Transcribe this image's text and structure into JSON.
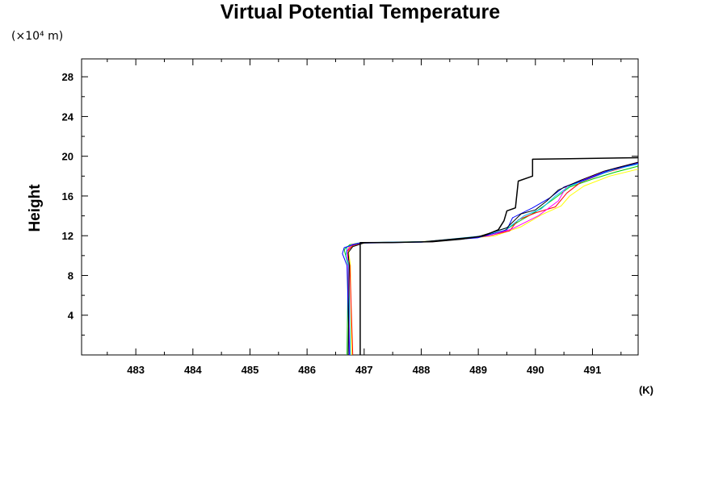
{
  "chart_data": {
    "type": "line",
    "title": "Virtual Potential Temperature",
    "ylabel": "Height",
    "y_unit": "(×10⁴ m)",
    "x_unit": "(K)",
    "xlim": [
      482.05,
      491.8
    ],
    "ylim": [
      0,
      29.8
    ],
    "x_ticks": [
      483,
      484,
      485,
      486,
      487,
      488,
      489,
      490,
      491
    ],
    "x_tick_labels": [
      "483",
      "484",
      "485",
      "486",
      "487",
      "488",
      "489",
      "490",
      "491"
    ],
    "y_ticks": [
      4,
      8,
      12,
      16,
      20,
      24,
      28
    ],
    "y_tick_labels": [
      "4",
      "8",
      "12",
      "16",
      "20",
      "24",
      "28"
    ],
    "grid": false,
    "series": [
      {
        "color": "#000000",
        "width": 1.5,
        "points": [
          [
            486.93,
            0
          ],
          [
            486.93,
            11.3
          ],
          [
            487.5,
            11.32
          ],
          [
            488.2,
            11.4
          ],
          [
            488.7,
            11.65
          ],
          [
            489.1,
            12.0
          ],
          [
            489.35,
            12.6
          ],
          [
            489.45,
            13.5
          ],
          [
            489.5,
            14.5
          ],
          [
            489.65,
            14.8
          ],
          [
            489.7,
            17.5
          ],
          [
            489.95,
            18.0
          ],
          [
            489.95,
            19.7
          ],
          [
            490.6,
            19.75
          ],
          [
            491.8,
            19.85
          ]
        ]
      },
      {
        "color": "#000000",
        "width": 1.0,
        "points": [
          [
            486.72,
            0
          ],
          [
            486.74,
            9.0
          ],
          [
            486.72,
            10.3
          ],
          [
            486.8,
            10.9
          ],
          [
            487.0,
            11.28
          ],
          [
            488.0,
            11.38
          ],
          [
            489.0,
            11.9
          ],
          [
            489.5,
            12.8
          ],
          [
            489.75,
            14.2
          ],
          [
            490.0,
            14.6
          ],
          [
            490.2,
            15.5
          ],
          [
            490.4,
            16.6
          ],
          [
            490.8,
            17.6
          ],
          [
            491.2,
            18.5
          ],
          [
            491.8,
            19.4
          ]
        ]
      },
      {
        "color": "#0000ff",
        "width": 1.0,
        "points": [
          [
            486.74,
            0
          ],
          [
            486.7,
            9.0
          ],
          [
            486.62,
            10.2
          ],
          [
            486.65,
            10.8
          ],
          [
            486.9,
            11.25
          ],
          [
            488.0,
            11.35
          ],
          [
            489.0,
            11.8
          ],
          [
            489.5,
            12.6
          ],
          [
            489.6,
            13.8
          ],
          [
            489.95,
            14.8
          ],
          [
            490.25,
            15.8
          ],
          [
            490.5,
            16.9
          ],
          [
            490.9,
            17.7
          ],
          [
            491.3,
            18.6
          ],
          [
            491.8,
            19.3
          ]
        ]
      },
      {
        "color": "#00bfff",
        "width": 1.0,
        "points": [
          [
            486.76,
            0
          ],
          [
            486.73,
            9.0
          ],
          [
            486.68,
            10.0
          ],
          [
            486.7,
            10.9
          ],
          [
            486.95,
            11.3
          ],
          [
            488.1,
            11.42
          ],
          [
            489.1,
            12.0
          ],
          [
            489.55,
            12.9
          ],
          [
            489.8,
            14.0
          ],
          [
            490.1,
            14.7
          ],
          [
            490.35,
            16.0
          ],
          [
            490.6,
            17.0
          ],
          [
            491.0,
            17.9
          ],
          [
            491.4,
            18.7
          ],
          [
            491.8,
            19.2
          ]
        ]
      },
      {
        "color": "#ff00ff",
        "width": 1.0,
        "points": [
          [
            486.75,
            0
          ],
          [
            486.72,
            9.0
          ],
          [
            486.7,
            10.5
          ],
          [
            486.78,
            11.1
          ],
          [
            487.0,
            11.3
          ],
          [
            488.2,
            11.4
          ],
          [
            489.2,
            12.0
          ],
          [
            489.6,
            12.7
          ],
          [
            490.05,
            14.0
          ],
          [
            490.4,
            15.5
          ],
          [
            490.55,
            17.0
          ],
          [
            491.0,
            18.0
          ],
          [
            491.4,
            18.8
          ],
          [
            491.8,
            19.4
          ]
        ]
      },
      {
        "color": "#ff0000",
        "width": 1.0,
        "points": [
          [
            486.8,
            0
          ],
          [
            486.75,
            9.0
          ],
          [
            486.7,
            10.4
          ],
          [
            486.8,
            11.0
          ],
          [
            487.0,
            11.3
          ],
          [
            488.2,
            11.4
          ],
          [
            489.2,
            12.0
          ],
          [
            489.55,
            12.5
          ],
          [
            489.7,
            13.6
          ],
          [
            490.0,
            14.3
          ],
          [
            490.35,
            14.9
          ],
          [
            490.55,
            16.3
          ],
          [
            490.8,
            17.4
          ],
          [
            491.2,
            18.3
          ],
          [
            491.8,
            19.3
          ]
        ]
      },
      {
        "color": "#00cc00",
        "width": 1.0,
        "points": [
          [
            486.7,
            0
          ],
          [
            486.72,
            9.0
          ],
          [
            486.65,
            10.6
          ],
          [
            486.75,
            11.1
          ],
          [
            486.95,
            11.3
          ],
          [
            488.0,
            11.38
          ],
          [
            489.0,
            11.85
          ],
          [
            489.45,
            12.5
          ],
          [
            489.7,
            13.4
          ],
          [
            490.0,
            14.4
          ],
          [
            490.3,
            15.6
          ],
          [
            490.6,
            16.9
          ],
          [
            491.0,
            17.7
          ],
          [
            491.4,
            18.4
          ],
          [
            491.8,
            19.0
          ]
        ]
      },
      {
        "color": "#ffff00",
        "width": 1.0,
        "points": [
          [
            486.78,
            0
          ],
          [
            486.76,
            9.0
          ],
          [
            486.72,
            10.8
          ],
          [
            486.9,
            11.2
          ],
          [
            487.2,
            11.32
          ],
          [
            488.3,
            11.45
          ],
          [
            489.3,
            12.0
          ],
          [
            489.75,
            12.9
          ],
          [
            490.1,
            14.1
          ],
          [
            490.45,
            15.0
          ],
          [
            490.6,
            16.0
          ],
          [
            490.85,
            17.0
          ],
          [
            491.3,
            18.0
          ],
          [
            491.8,
            18.7
          ]
        ]
      }
    ]
  }
}
